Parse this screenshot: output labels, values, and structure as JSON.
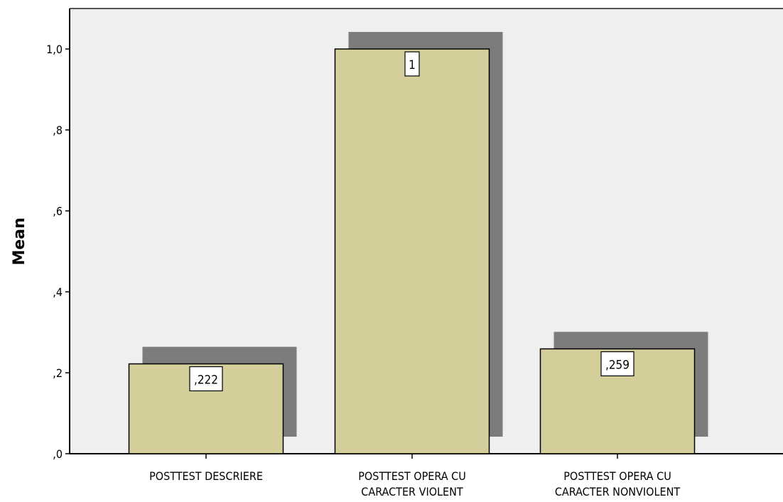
{
  "chart_data": {
    "type": "bar",
    "categories": [
      [
        "POSTTEST DESCRIERE"
      ],
      [
        "POSTTEST OPERA CU",
        "CARACTER VIOLENT"
      ],
      [
        "POSTTEST OPERA CU",
        "CARACTER NONVIOLENT"
      ]
    ],
    "values": [
      0.222,
      1.0,
      0.259
    ],
    "value_labels": [
      ",222",
      "1",
      ",259"
    ],
    "ylabel": "Mean",
    "ylim": [
      0,
      1.1
    ],
    "yticks": [
      0,
      0.2,
      0.4,
      0.6,
      0.8,
      1.0
    ],
    "ytick_labels": [
      ",0",
      ",2",
      ",4",
      ",6",
      ",8",
      "1,0"
    ],
    "bar_style": "3d-shadow",
    "grid": false
  },
  "colors": {
    "plot_background": "#efefef",
    "bar_fill": "#d3ce9a",
    "bar_shadow": "#7c7c7c",
    "axis": "#000000"
  }
}
